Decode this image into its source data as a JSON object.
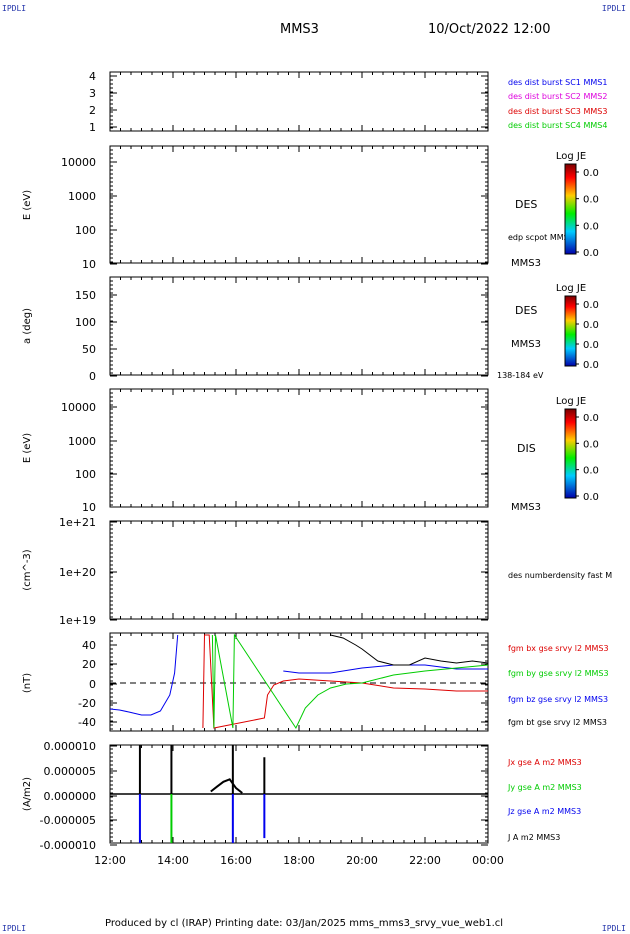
{
  "corners": {
    "tl": "IPDLI",
    "tr": "IPDLI",
    "bl": "IPDLI",
    "br": "IPDLI"
  },
  "header": {
    "mission": "MMS3",
    "datetime": "10/Oct/2022 12:00"
  },
  "footer": {
    "text": "Produced by cl (IRAP)   Printing date: 03/Jan/2025   mms_mms3_srvy_vue_web1.cl"
  },
  "x_ticks": [
    "12:00",
    "14:00",
    "16:00",
    "18:00",
    "20:00",
    "22:00",
    "00:00"
  ],
  "colors": {
    "blue": "#0000ee",
    "magenta": "#dd00dd",
    "red": "#dd0000",
    "green": "#00cc00",
    "black": "#000000"
  },
  "chart_data": [
    {
      "type": "line",
      "name": "burst",
      "yticks": [
        "4",
        "3",
        "2",
        "1"
      ],
      "ylim": [
        0.7,
        4.3
      ],
      "legend": [
        {
          "label": "des dist burst SC1 MMS1",
          "color": "#0000ee"
        },
        {
          "label": "des dist burst SC2 MMS2",
          "color": "#dd00dd"
        },
        {
          "label": "des dist burst SC3 MMS3",
          "color": "#dd0000"
        },
        {
          "label": "des dist burst SC4 MMS4",
          "color": "#00cc00"
        }
      ]
    },
    {
      "type": "heatmap",
      "name": "des-energy",
      "ylabel": "E (eV)",
      "yscale": "log",
      "yticks": [
        "10000",
        "1000",
        "100",
        "10"
      ],
      "ylim": [
        10,
        30000
      ],
      "side_labels": [
        "DES",
        "edp scpot MMS3",
        "MMS3"
      ],
      "colorbar": {
        "title": "Log JE",
        "ticks": [
          "0.0",
          "0.0",
          "0.0",
          "0.0"
        ]
      }
    },
    {
      "type": "heatmap",
      "name": "des-pitch",
      "ylabel": "a (deg)",
      "yticks": [
        "150",
        "100",
        "50",
        "0"
      ],
      "ylim": [
        0,
        185
      ],
      "side_labels": [
        "DES",
        "MMS3",
        "138-184 eV"
      ],
      "colorbar": {
        "title": "Log JE",
        "ticks": [
          "0.0",
          "0.0",
          "0.0",
          "0.0"
        ]
      }
    },
    {
      "type": "heatmap",
      "name": "dis-energy",
      "ylabel": "E (eV)",
      "yscale": "log",
      "yticks": [
        "10000",
        "1000",
        "100",
        "10"
      ],
      "ylim": [
        10,
        30000
      ],
      "side_labels": [
        "DIS",
        "MMS3"
      ],
      "colorbar": {
        "title": "Log JE",
        "ticks": [
          "0.0",
          "0.0",
          "0.0",
          "0.0"
        ]
      }
    },
    {
      "type": "line",
      "name": "density",
      "ylabel": "(cm^-3)",
      "yscale": "log",
      "yticks": [
        "1e+21",
        "1e+20",
        "1e+19"
      ],
      "ylim": [
        1e+19,
        1e+21
      ],
      "legend": [
        {
          "label": "des numberdensity fast M",
          "color": "#000000"
        }
      ]
    },
    {
      "type": "line",
      "name": "fgm",
      "ylabel": "(nT)",
      "yticks": [
        "40",
        "20",
        "0",
        "-20",
        "-40"
      ],
      "ylim": [
        -48,
        50
      ],
      "x_hours": [
        0,
        12
      ],
      "legend": [
        {
          "label": "fgm bx gse srvy l2 MMS3",
          "color": "#dd0000"
        },
        {
          "label": "fgm by gse srvy l2 MMS3",
          "color": "#00cc00"
        },
        {
          "label": "fgm bz gse srvy l2 MMS3",
          "color": "#0000ee"
        },
        {
          "label": "fgm bt gse srvy l2 MMS3",
          "color": "#000000"
        }
      ],
      "series": [
        {
          "color": "#0000ee",
          "x": [
            0,
            0.3,
            0.6,
            1.0,
            1.3,
            1.6,
            1.9,
            2.05,
            2.15,
            3.0,
            3.05,
            3.9,
            3.95,
            5.1,
            5.5,
            6.0,
            7.0,
            8.0,
            9.0,
            10.0,
            11.0,
            12.0
          ],
          "y": [
            -26,
            -27,
            -29,
            -32,
            -32,
            -28,
            -12,
            10,
            48,
            null,
            48,
            null,
            48,
            null,
            12,
            10,
            10,
            15,
            18,
            18,
            14,
            14
          ]
        },
        {
          "color": "#dd0000",
          "x": [
            2.95,
            3.0,
            3.15,
            3.3,
            4.9,
            5.0,
            5.2,
            5.5,
            6.0,
            7.0,
            8.0,
            9.0,
            10.0,
            11.0,
            12.0
          ],
          "y": [
            -45,
            48,
            48,
            -45,
            -35,
            -12,
            -2,
            2,
            4,
            2,
            0,
            -5,
            -6,
            -8,
            -8
          ]
        },
        {
          "color": "#00cc00",
          "x": [
            3.25,
            3.3,
            3.35,
            3.9,
            3.95,
            5.9,
            6.2,
            6.6,
            7.0,
            7.5,
            8.0,
            9.0,
            9.5,
            10.0,
            11.0,
            12.0
          ],
          "y": [
            48,
            -45,
            48,
            -45,
            48,
            -45,
            -25,
            -12,
            -5,
            -1,
            0,
            8,
            10,
            12,
            15,
            18
          ]
        },
        {
          "color": "#000000",
          "x": [
            7.0,
            7.4,
            7.8,
            8.0,
            8.5,
            9.0,
            9.5,
            10.0,
            10.5,
            11.0,
            11.5,
            12.0
          ],
          "y": [
            48,
            45,
            38,
            34,
            22,
            18,
            18,
            25,
            22,
            20,
            22,
            20
          ]
        }
      ],
      "reference_line": 0
    },
    {
      "type": "line",
      "name": "current",
      "ylabel": "(A/m2)",
      "yticks": [
        "0.000010",
        "0.000005",
        "0.000000",
        "-0.000005",
        "-0.000010"
      ],
      "ylim": [
        -1e-05,
        1e-05
      ],
      "x_hours": [
        0,
        12
      ],
      "legend": [
        {
          "label": "Jx gse A m2 MMS3",
          "color": "#dd0000"
        },
        {
          "label": "Jy gse A m2 MMS3",
          "color": "#00cc00"
        },
        {
          "label": "Jz gse A m2 MMS3",
          "color": "#0000ee"
        },
        {
          "label": "J A m2 MMS3",
          "color": "#000000"
        }
      ],
      "spikes": [
        {
          "x": 0.95,
          "color": "#000000",
          "y": 1e-05
        },
        {
          "x": 0.95,
          "color": "#0000ee",
          "y": -1e-05
        },
        {
          "x": 1.95,
          "color": "#000000",
          "y": 1e-05
        },
        {
          "x": 1.95,
          "color": "#00cc00",
          "y": -1e-05
        },
        {
          "x": 3.9,
          "color": "#000000",
          "y": 1e-05
        },
        {
          "x": 3.9,
          "color": "#0000ee",
          "y": -1e-05
        },
        {
          "x": 4.9,
          "color": "#000000",
          "y": 7.5e-06
        },
        {
          "x": 4.9,
          "color": "#0000ee",
          "y": -9e-06
        }
      ],
      "bump": {
        "x": [
          3.2,
          3.4,
          3.6,
          3.8,
          4.0,
          4.2
        ],
        "y": [
          5e-07,
          1.5e-06,
          2.5e-06,
          3e-06,
          1.2e-06,
          2e-07
        ]
      }
    }
  ]
}
